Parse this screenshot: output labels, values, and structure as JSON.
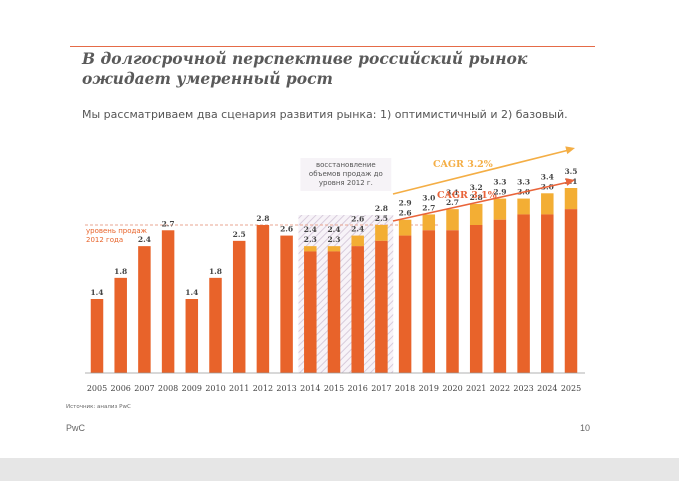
{
  "slide": {
    "title": "В долгосрочной перспективе российский рынок ожидает умеренный рост",
    "subtitle": "Мы рассматриваем два сценария развития рынка: 1) оптимистичный и 2) базовый.",
    "source": "Источник: анализ PwC",
    "footer_brand": "PwC",
    "page_number": "10"
  },
  "chart_data": {
    "type": "bar",
    "categories": [
      "2005",
      "2006",
      "2007",
      "2008",
      "2009",
      "2010",
      "2011",
      "2012",
      "2013",
      "2014",
      "2015",
      "2016",
      "2017",
      "2018",
      "2019",
      "2020",
      "2021",
      "2022",
      "2023",
      "2024",
      "2025"
    ],
    "series": [
      {
        "values": [
          1.4,
          1.8,
          2.4,
          2.7,
          1.4,
          1.8,
          2.5,
          2.8,
          2.6,
          2.3,
          2.3,
          2.4,
          2.5,
          2.6,
          2.7,
          2.7,
          2.8,
          2.9,
          3.0,
          3.0,
          3.1
        ]
      },
      {
        "values": [
          null,
          null,
          null,
          null,
          null,
          null,
          null,
          null,
          null,
          2.4,
          2.4,
          2.6,
          2.8,
          2.9,
          3.0,
          3.1,
          3.2,
          3.3,
          3.3,
          3.4,
          3.5
        ]
      }
    ],
    "annotations": {
      "recovery": "восстановление объемов продаж до уровня 2012 г.",
      "level_2012": "уровень продаж 2012 года",
      "cagr_optimistic": "CAGR 3.2%",
      "cagr_base": "CAGR 3.1%"
    },
    "ylim": [
      0,
      3.5
    ],
    "reference_line": 2.8,
    "colors": {
      "base": "#e8632a",
      "optimistic": "#f3ae34",
      "arrow_optimistic": "#f4ae45",
      "arrow_base": "#e9643a",
      "recovery_band": "#d8ccdc",
      "reference": "#e9a590"
    }
  }
}
